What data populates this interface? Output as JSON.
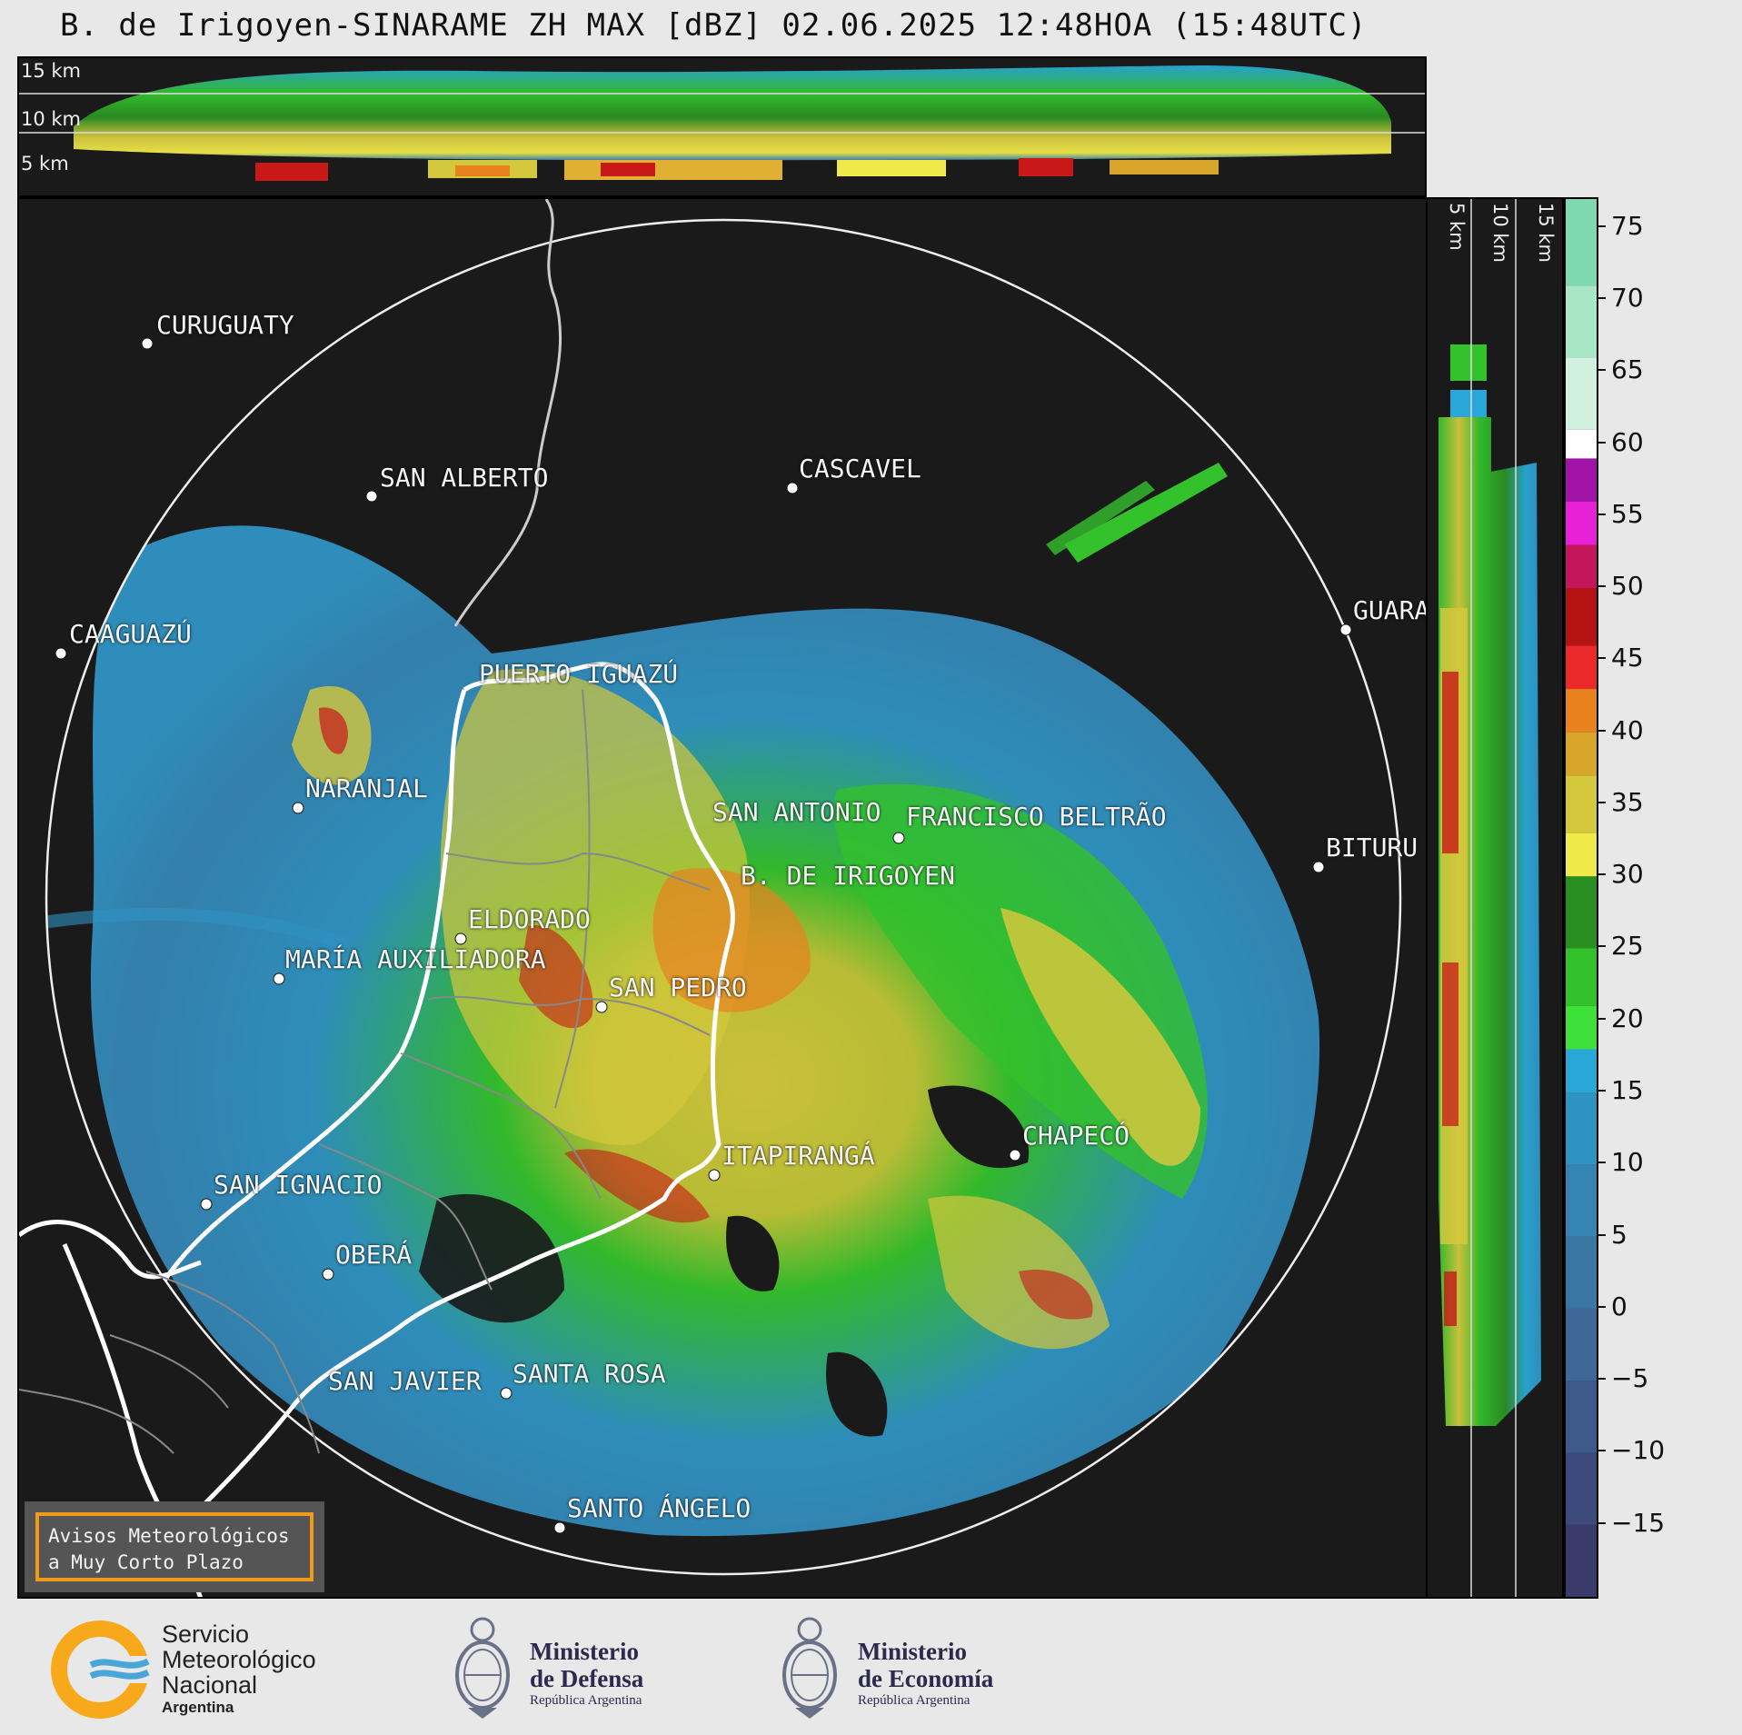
{
  "title": "B. de Irigoyen-SINARAME ZH MAX [dBZ] 02.06.2025 12:48HOA (15:48UTC)",
  "top_panel": {
    "altitude_labels": [
      "15 km",
      "10 km",
      "5 km"
    ]
  },
  "right_panel": {
    "altitude_labels": [
      "5 km",
      "10 km",
      "15 km"
    ]
  },
  "colorbar": {
    "unit": "dBZ",
    "ticks": [
      "75",
      "70",
      "65",
      "60",
      "55",
      "50",
      "45",
      "40",
      "35",
      "30",
      "25",
      "20",
      "15",
      "10",
      "5",
      "0",
      "−5",
      "−10",
      "−15"
    ],
    "tick_values": [
      75,
      70,
      65,
      60,
      55,
      50,
      45,
      40,
      35,
      30,
      25,
      20,
      15,
      10,
      5,
      0,
      -5,
      -10,
      -15
    ],
    "range": [
      -20,
      77
    ],
    "color_stops": [
      {
        "from": -20,
        "to": -15,
        "color": "#3a3a6b"
      },
      {
        "from": -15,
        "to": -10,
        "color": "#3d4b7c"
      },
      {
        "from": -10,
        "to": -5,
        "color": "#3e5a8a"
      },
      {
        "from": -5,
        "to": 0,
        "color": "#3d6897"
      },
      {
        "from": 0,
        "to": 5,
        "color": "#3a76a4"
      },
      {
        "from": 5,
        "to": 10,
        "color": "#3584b3"
      },
      {
        "from": 10,
        "to": 15,
        "color": "#2f93c2"
      },
      {
        "from": 15,
        "to": 18,
        "color": "#29a7d8"
      },
      {
        "from": 18,
        "to": 21,
        "color": "#3de13a"
      },
      {
        "from": 21,
        "to": 25,
        "color": "#33c12c"
      },
      {
        "from": 25,
        "to": 30,
        "color": "#2a8f22"
      },
      {
        "from": 30,
        "to": 33,
        "color": "#f0e94a"
      },
      {
        "from": 33,
        "to": 37,
        "color": "#d4c83c"
      },
      {
        "from": 37,
        "to": 40,
        "color": "#d9a62c"
      },
      {
        "from": 40,
        "to": 43,
        "color": "#e7821f"
      },
      {
        "from": 43,
        "to": 46,
        "color": "#ea2a2a"
      },
      {
        "from": 46,
        "to": 50,
        "color": "#b51414"
      },
      {
        "from": 50,
        "to": 53,
        "color": "#c4175b"
      },
      {
        "from": 53,
        "to": 56,
        "color": "#e621d6"
      },
      {
        "from": 56,
        "to": 59,
        "color": "#a014a8"
      },
      {
        "from": 59,
        "to": 61,
        "color": "#ffffff"
      },
      {
        "from": 61,
        "to": 66,
        "color": "#d2f0e0"
      },
      {
        "from": 66,
        "to": 71,
        "color": "#a8e6c6"
      },
      {
        "from": 71,
        "to": 77,
        "color": "#7fd9b0"
      }
    ]
  },
  "cities": [
    {
      "name": "CURUGUATY"
    },
    {
      "name": "SAN ALBERTO"
    },
    {
      "name": "CASCAVEL"
    },
    {
      "name": "CAAGUAZÚ"
    },
    {
      "name": "GUARA"
    },
    {
      "name": "PUERTO IGUAZÚ"
    },
    {
      "name": "NARANJAL"
    },
    {
      "name": "SAN ANTONIO"
    },
    {
      "name": "FRANCISCO BELTRÃO"
    },
    {
      "name": "BITURU"
    },
    {
      "name": "B. DE IRIGOYEN"
    },
    {
      "name": "ELDORADO"
    },
    {
      "name": "MARÍA AUXILIADORA"
    },
    {
      "name": "SAN PEDRO"
    },
    {
      "name": "CHAPECÓ"
    },
    {
      "name": "ITAPIRANGÁ"
    },
    {
      "name": "SAN IGNACIO"
    },
    {
      "name": "OBERÁ"
    },
    {
      "name": "SAN JAVIER"
    },
    {
      "name": "SANTA ROSA"
    },
    {
      "name": "SANTO ÁNGELO"
    }
  ],
  "alert_box": {
    "line1": "Avisos Meteorológicos",
    "line2": "a Muy Corto Plazo"
  },
  "footer": {
    "smn": {
      "line1": "Servicio",
      "line2": "Meteorológico",
      "line3": "Nacional",
      "line4": "Argentina"
    },
    "defensa": {
      "line1": "Ministerio",
      "line2": "de Defensa",
      "line3": "República Argentina"
    },
    "economia": {
      "line1": "Ministerio",
      "line2": "de Economía",
      "line3": "República Argentina"
    }
  }
}
